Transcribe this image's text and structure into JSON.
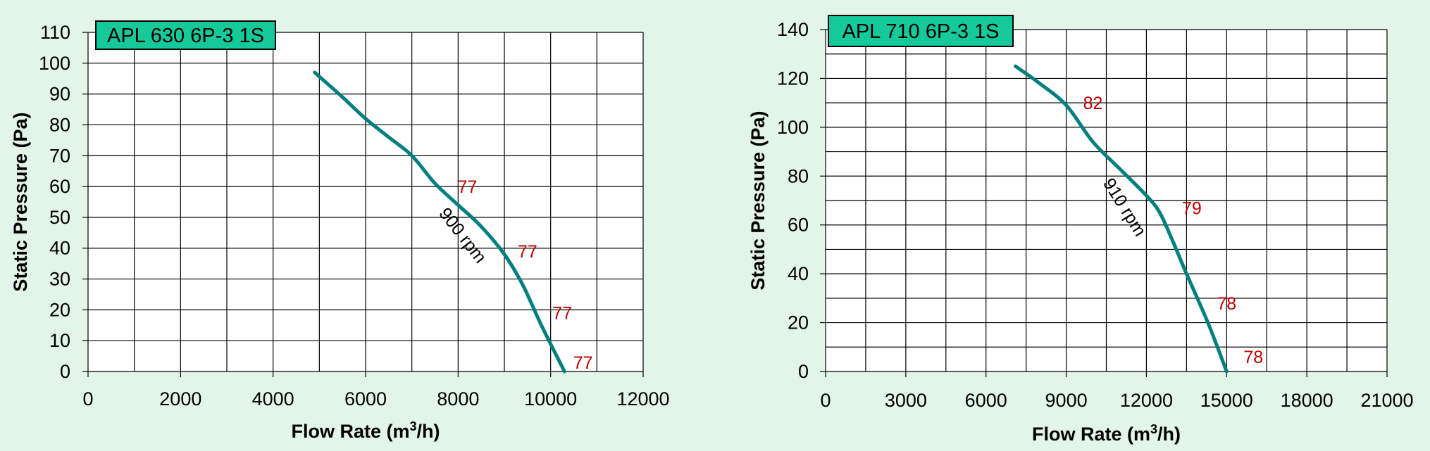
{
  "chart_data": [
    {
      "type": "line",
      "title": "APL 630 6P-3 1S",
      "xlabel": "Flow Rate (m³/h)",
      "ylabel": "Static Pressure (Pa)",
      "xlim": [
        0,
        12000
      ],
      "ylim": [
        0,
        110
      ],
      "x_ticks": [
        0,
        2000,
        4000,
        6000,
        8000,
        10000,
        12000
      ],
      "y_ticks": [
        0,
        10,
        20,
        30,
        40,
        50,
        60,
        70,
        80,
        90,
        100,
        110
      ],
      "grid": true,
      "series": [
        {
          "color": "#007f7f",
          "x": [
            4900,
            5500,
            6000,
            6500,
            7000,
            7500,
            8000,
            8500,
            9000,
            9400,
            9800,
            10300
          ],
          "y": [
            97,
            89,
            82,
            76,
            70,
            61,
            54,
            47,
            38,
            28,
            15,
            0
          ]
        }
      ],
      "line_label": {
        "text": "900 rpm",
        "x": 8000,
        "y": 43,
        "angle": 52
      },
      "annotations": [
        {
          "text": "77",
          "x": 8200,
          "y": 60
        },
        {
          "text": "77",
          "x": 9500,
          "y": 39
        },
        {
          "text": "77",
          "x": 10250,
          "y": 19
        },
        {
          "text": "77",
          "x": 10700,
          "y": 3
        }
      ]
    },
    {
      "type": "line",
      "title": "APL 710 6P-3 1S",
      "xlabel": "Flow Rate (m³/h)",
      "ylabel": "Static Pressure (Pa)",
      "xlim": [
        0,
        21000
      ],
      "ylim": [
        0,
        140
      ],
      "x_ticks": [
        0,
        3000,
        6000,
        9000,
        12000,
        15000,
        18000,
        21000
      ],
      "y_ticks": [
        0,
        20,
        40,
        60,
        80,
        100,
        120,
        140
      ],
      "grid": true,
      "series": [
        {
          "color": "#007f7f",
          "x": [
            7100,
            8000,
            9000,
            10000,
            11000,
            12000,
            12500,
            13000,
            13500,
            14300,
            15000
          ],
          "y": [
            125,
            118,
            109,
            94,
            83,
            72,
            65,
            53,
            40,
            20,
            0
          ]
        }
      ],
      "line_label": {
        "text": "910 rpm",
        "x": 11000,
        "y": 66,
        "angle": 58
      },
      "annotations": [
        {
          "text": "82",
          "x": 10000,
          "y": 110
        },
        {
          "text": "79",
          "x": 13700,
          "y": 67
        },
        {
          "text": "78",
          "x": 15000,
          "y": 28
        },
        {
          "text": "78",
          "x": 16000,
          "y": 6
        }
      ]
    }
  ],
  "badge_color": "#16c99a"
}
